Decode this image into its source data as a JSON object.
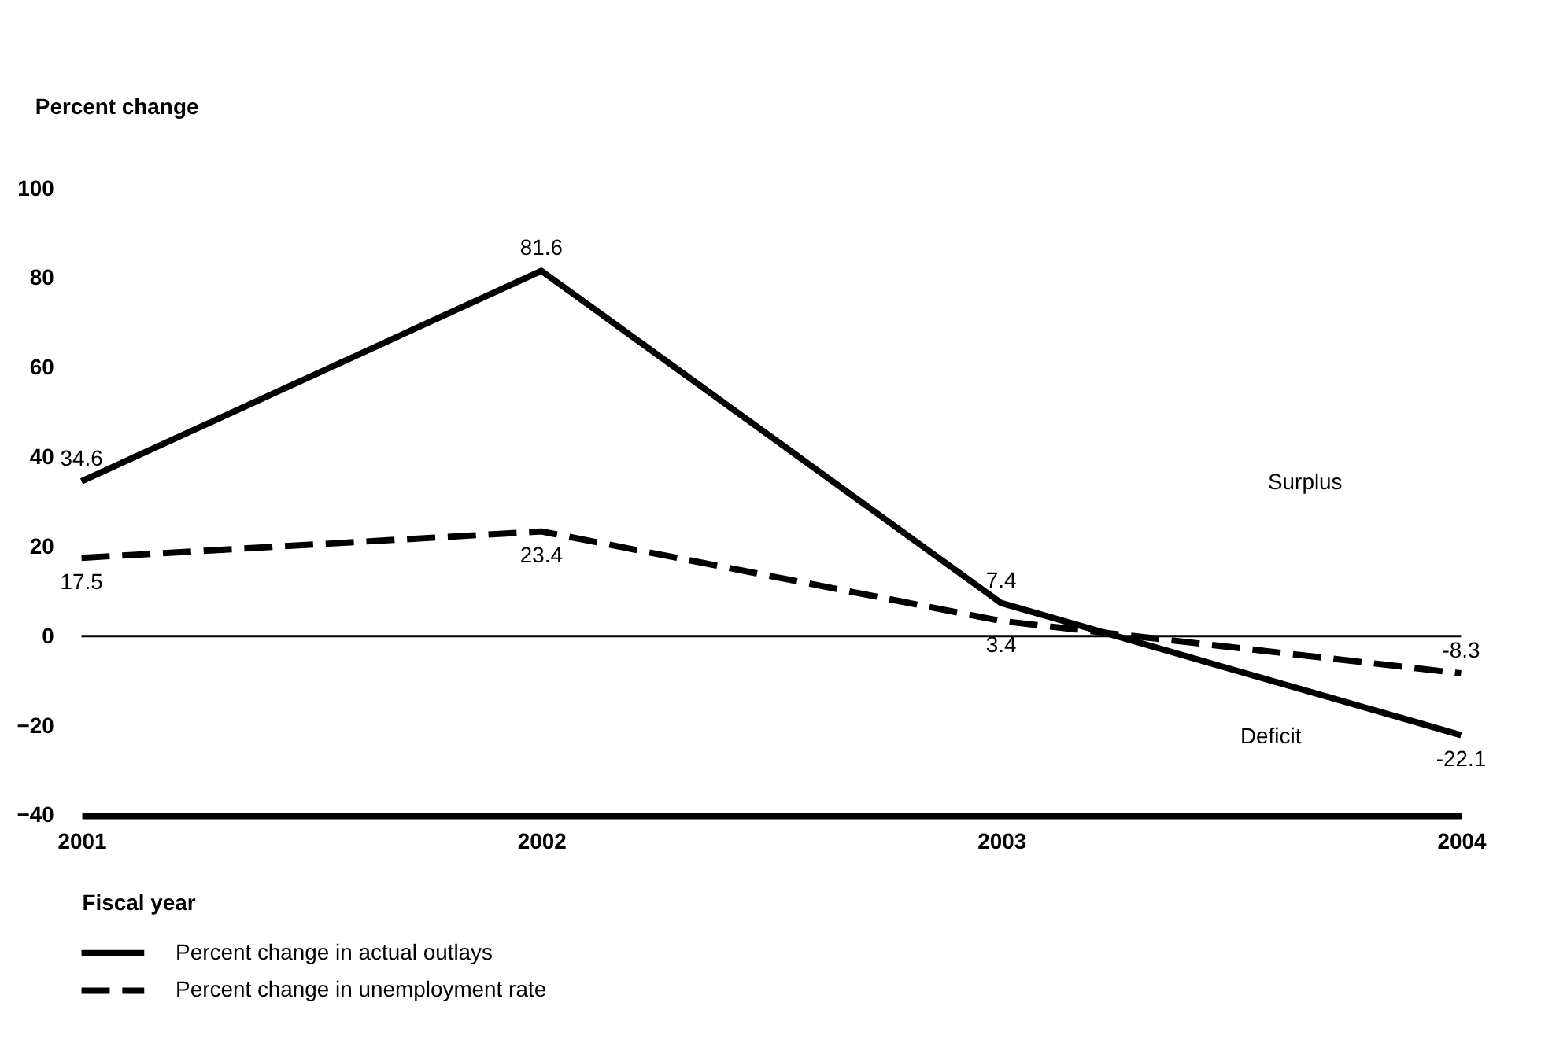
{
  "chart_data": {
    "type": "line",
    "xlabel": "Fiscal year",
    "ylabel": "Percent change",
    "x": [
      2001,
      2002,
      2003,
      2004
    ],
    "xlim": [
      2001,
      2004
    ],
    "xticks": [
      2001,
      2002,
      2003,
      2004
    ],
    "ylim": [
      -40,
      100
    ],
    "yticks": [
      -40,
      -20,
      0,
      20,
      40,
      60,
      80,
      100
    ],
    "series": [
      {
        "name": "Percent change in actual outlays",
        "color": "#000000",
        "line_style": "solid",
        "values": [
          34.6,
          81.6,
          7.4,
          -22.1
        ]
      },
      {
        "name": "Percent change in unemployment rate",
        "color": "#000000",
        "line_style": "dashed",
        "values": [
          17.5,
          23.4,
          3.4,
          -8.3
        ]
      }
    ],
    "data_labels": true,
    "ref_lines": [
      {
        "axis": "y",
        "value": 0,
        "color": "#000000"
      }
    ],
    "annotations": [
      "Surplus",
      "Deficit"
    ],
    "grid": false,
    "legend": "bottom",
    "marker": "none"
  }
}
